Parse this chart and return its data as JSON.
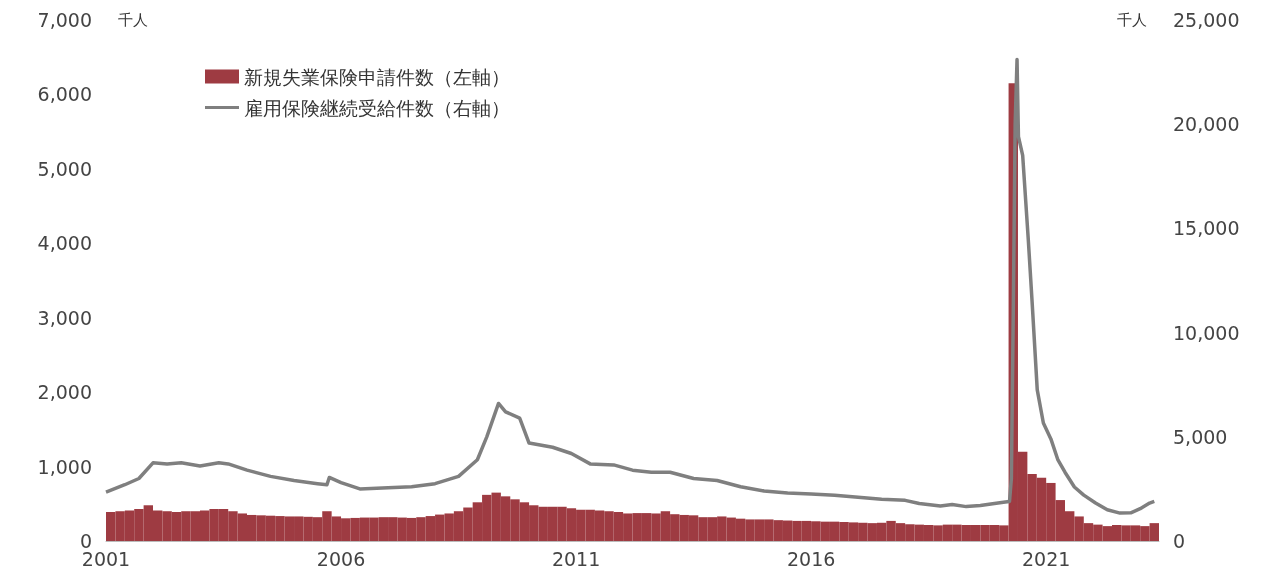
{
  "chart_data": {
    "type": "bar",
    "ylabel": "千人",
    "y2label": "千人",
    "legend": "top left",
    "grid": false,
    "xlim": [
      2001,
      2023.4
    ],
    "xticks": [
      2001,
      2006,
      2011,
      2016,
      2021
    ],
    "ylim": [
      0,
      7000
    ],
    "yticks": [
      {
        "value": 0,
        "label": "0"
      },
      {
        "value": 1000,
        "label": "1,000"
      },
      {
        "value": 2000,
        "label": "2,000"
      },
      {
        "value": 3000,
        "label": "3,000"
      },
      {
        "value": 4000,
        "label": "4,000"
      },
      {
        "value": 5000,
        "label": "5,000"
      },
      {
        "value": 6000,
        "label": "6,000"
      },
      {
        "value": 7000,
        "label": "7,000"
      }
    ],
    "y2lim": [
      0,
      25000
    ],
    "y2ticks": [
      {
        "value": 0,
        "label": "0"
      },
      {
        "value": 5000,
        "label": "5,000"
      },
      {
        "value": 10000,
        "label": "10,000"
      },
      {
        "value": 15000,
        "label": "15,000"
      },
      {
        "value": 20000,
        "label": "20,000"
      },
      {
        "value": 25000,
        "label": "25,000"
      }
    ],
    "series": [
      {
        "name": "新規失業保険申請件数（左軸）",
        "color": "#9e3b42",
        "x": [
          2001.1,
          2001.3,
          2001.5,
          2001.7,
          2001.9,
          2002.1,
          2002.3,
          2002.5,
          2002.7,
          2002.9,
          2003.1,
          2003.3,
          2003.5,
          2003.7,
          2003.9,
          2004.1,
          2004.3,
          2004.5,
          2004.7,
          2004.9,
          2005.1,
          2005.3,
          2005.5,
          2005.7,
          2005.9,
          2006.1,
          2006.3,
          2006.5,
          2006.7,
          2006.9,
          2007.1,
          2007.3,
          2007.5,
          2007.7,
          2007.9,
          2008.1,
          2008.3,
          2008.5,
          2008.7,
          2008.9,
          2009.1,
          2009.3,
          2009.5,
          2009.7,
          2009.9,
          2010.1,
          2010.3,
          2010.5,
          2010.7,
          2010.9,
          2011.1,
          2011.3,
          2011.5,
          2011.7,
          2011.9,
          2012.1,
          2012.3,
          2012.5,
          2012.7,
          2012.9,
          2013.1,
          2013.3,
          2013.5,
          2013.7,
          2013.9,
          2014.1,
          2014.3,
          2014.5,
          2014.7,
          2014.9,
          2015.1,
          2015.3,
          2015.5,
          2015.7,
          2015.9,
          2016.1,
          2016.3,
          2016.5,
          2016.7,
          2016.9,
          2017.1,
          2017.3,
          2017.5,
          2017.7,
          2017.9,
          2018.1,
          2018.3,
          2018.5,
          2018.7,
          2018.9,
          2019.1,
          2019.3,
          2019.5,
          2019.7,
          2019.9,
          2020.1,
          2020.3,
          2020.5,
          2020.7,
          2020.9,
          2021.1,
          2021.3,
          2021.5,
          2021.7,
          2021.9,
          2022.1,
          2022.3,
          2022.5,
          2022.7,
          2022.9,
          2023.1,
          2023.3
        ],
        "values": [
          390,
          400,
          410,
          430,
          480,
          410,
          400,
          390,
          400,
          400,
          410,
          430,
          430,
          400,
          370,
          350,
          345,
          340,
          335,
          330,
          330,
          325,
          320,
          400,
          330,
          305,
          310,
          315,
          315,
          320,
          320,
          315,
          310,
          320,
          335,
          355,
          370,
          400,
          450,
          520,
          620,
          650,
          600,
          560,
          520,
          480,
          460,
          460,
          460,
          440,
          420,
          420,
          410,
          400,
          390,
          370,
          375,
          375,
          370,
          400,
          360,
          350,
          345,
          320,
          320,
          330,
          315,
          300,
          290,
          290,
          290,
          280,
          275,
          270,
          270,
          265,
          260,
          260,
          255,
          250,
          245,
          240,
          245,
          270,
          240,
          225,
          220,
          215,
          210,
          220,
          220,
          215,
          215,
          215,
          215,
          210,
          6150,
          1200,
          900,
          850,
          780,
          550,
          400,
          330,
          240,
          220,
          200,
          215,
          210,
          210,
          200,
          240
        ]
      },
      {
        "name": "雇用保険継続受給件数（右軸）",
        "type": "line",
        "axis": "y2",
        "color": "#7f7f7f",
        "x": [
          2001.0,
          2001.4,
          2001.7,
          2002.0,
          2002.3,
          2002.6,
          2003.0,
          2003.4,
          2003.6,
          2004.0,
          2004.5,
          2005.0,
          2005.5,
          2005.7,
          2005.75,
          2006.0,
          2006.4,
          2007.0,
          2007.5,
          2008.0,
          2008.5,
          2008.9,
          2009.1,
          2009.35,
          2009.5,
          2009.8,
          2010.0,
          2010.5,
          2010.9,
          2011.3,
          2011.8,
          2012.2,
          2012.6,
          2013.0,
          2013.5,
          2014.0,
          2014.5,
          2015.0,
          2015.5,
          2016.0,
          2016.5,
          2017.0,
          2017.5,
          2018.0,
          2018.3,
          2018.75,
          2019.0,
          2019.3,
          2019.6,
          2019.9,
          2020.13,
          2020.22,
          2020.26,
          2020.3,
          2020.34,
          2020.38,
          2020.41,
          2020.5,
          2020.62,
          2020.7,
          2020.81,
          2020.94,
          2021.1,
          2021.25,
          2021.4,
          2021.6,
          2021.8,
          2022.05,
          2022.3,
          2022.57,
          2022.8,
          2023.0,
          2023.2,
          2023.3
        ],
        "values": [
          2350,
          2700,
          3000,
          3750,
          3700,
          3750,
          3600,
          3750,
          3700,
          3400,
          3100,
          2900,
          2750,
          2700,
          3050,
          2800,
          2500,
          2550,
          2600,
          2750,
          3100,
          3900,
          5000,
          6600,
          6200,
          5900,
          4700,
          4500,
          4200,
          3700,
          3650,
          3400,
          3300,
          3300,
          3000,
          2900,
          2600,
          2400,
          2300,
          2250,
          2200,
          2100,
          2000,
          1950,
          1800,
          1680,
          1750,
          1650,
          1700,
          1800,
          1870,
          1900,
          3000,
          11000,
          20000,
          23100,
          19400,
          18500,
          14440,
          11500,
          7250,
          5660,
          4900,
          3890,
          3300,
          2590,
          2200,
          1820,
          1500,
          1340,
          1350,
          1550,
          1820,
          1900
        ]
      }
    ]
  }
}
